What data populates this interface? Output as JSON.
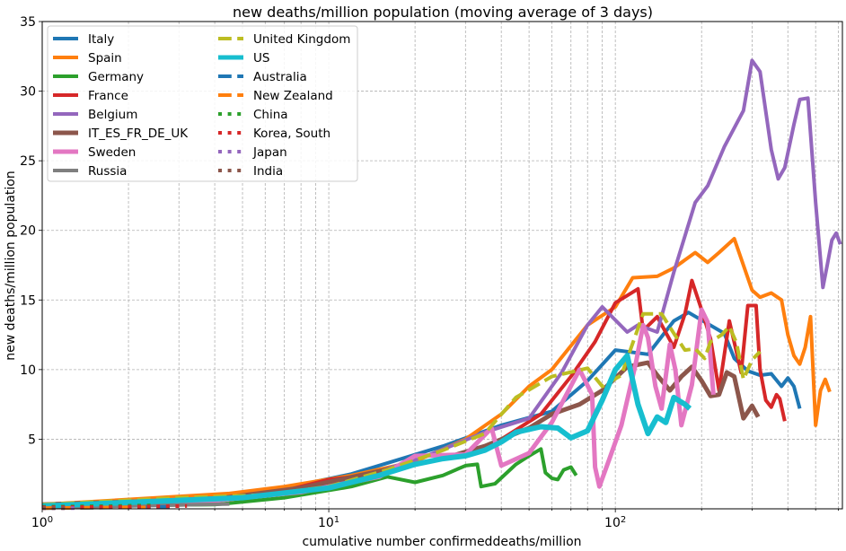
{
  "chart_data": {
    "type": "line",
    "title": "new deaths/million population (moving average of 3 days)",
    "xlabel": "cumulative number confirmeddeaths/million",
    "ylabel": "new deaths/million population",
    "xscale": "log",
    "xlim": [
      1,
      620
    ],
    "ylim": [
      0,
      35
    ],
    "grid": true,
    "legend_position": "upper-left",
    "x_ticks": [
      {
        "value": 1,
        "base": "10",
        "exp": "0"
      },
      {
        "value": 10,
        "base": "10",
        "exp": "1"
      },
      {
        "value": 100,
        "base": "10",
        "exp": "2"
      }
    ],
    "y_ticks": [
      5,
      10,
      15,
      20,
      25,
      30,
      35
    ],
    "series": [
      {
        "name": "Italy",
        "color": "#1f77b4",
        "style": "solid",
        "width": 4,
        "points": [
          [
            1,
            0.3
          ],
          [
            3,
            0.6
          ],
          [
            6,
            1.2
          ],
          [
            12,
            2.5
          ],
          [
            25,
            4.5
          ],
          [
            40,
            6
          ],
          [
            60,
            7
          ],
          [
            80,
            9.2
          ],
          [
            100,
            11.4
          ],
          [
            130,
            11.1
          ],
          [
            160,
            13.5
          ],
          [
            180,
            14.1
          ],
          [
            210,
            13.3
          ],
          [
            240,
            12.6
          ],
          [
            260,
            10.8
          ],
          [
            290,
            9.9
          ],
          [
            320,
            9.6
          ],
          [
            350,
            9.7
          ],
          [
            380,
            8.8
          ],
          [
            400,
            9.4
          ],
          [
            420,
            8.8
          ],
          [
            440,
            7.2
          ]
        ]
      },
      {
        "name": "Spain",
        "color": "#ff7f0e",
        "style": "solid",
        "width": 4,
        "points": [
          [
            1,
            0.3
          ],
          [
            4.5,
            1.1
          ],
          [
            7,
            1.6
          ],
          [
            12,
            2.4
          ],
          [
            20,
            3.4
          ],
          [
            30,
            5
          ],
          [
            40,
            6.8
          ],
          [
            50,
            8.8
          ],
          [
            60,
            10
          ],
          [
            80,
            13.2
          ],
          [
            100,
            14.5
          ],
          [
            115,
            16.6
          ],
          [
            140,
            16.7
          ],
          [
            160,
            17.3
          ],
          [
            190,
            18.4
          ],
          [
            210,
            17.7
          ],
          [
            230,
            18.4
          ],
          [
            260,
            19.4
          ],
          [
            300,
            15.7
          ],
          [
            320,
            15.2
          ],
          [
            350,
            15.5
          ],
          [
            380,
            15
          ],
          [
            400,
            12.5
          ],
          [
            420,
            11
          ],
          [
            440,
            10.4
          ],
          [
            460,
            11.6
          ],
          [
            480,
            13.8
          ],
          [
            500,
            6
          ],
          [
            520,
            8.5
          ],
          [
            540,
            9.3
          ],
          [
            560,
            8.4
          ]
        ]
      },
      {
        "name": "Germany",
        "color": "#2ca02c",
        "style": "solid",
        "width": 4,
        "points": [
          [
            1,
            0.2
          ],
          [
            4,
            0.3
          ],
          [
            7,
            0.8
          ],
          [
            12,
            1.6
          ],
          [
            16,
            2.3
          ],
          [
            20,
            1.9
          ],
          [
            25,
            2.4
          ],
          [
            30,
            3.1
          ],
          [
            33,
            3.2
          ],
          [
            34,
            1.6
          ],
          [
            38,
            1.8
          ],
          [
            45,
            3.2
          ],
          [
            50,
            3.8
          ],
          [
            55,
            4.3
          ],
          [
            57,
            2.6
          ],
          [
            60,
            2.2
          ],
          [
            63,
            2.1
          ],
          [
            66,
            2.8
          ],
          [
            70,
            3
          ],
          [
            73,
            2.4
          ]
        ]
      },
      {
        "name": "France",
        "color": "#d62728",
        "style": "solid",
        "width": 4,
        "points": [
          [
            1,
            0.2
          ],
          [
            4,
            0.6
          ],
          [
            7,
            1.3
          ],
          [
            10,
            2.1
          ],
          [
            15,
            2.5
          ],
          [
            22,
            3.4
          ],
          [
            30,
            3.8
          ],
          [
            40,
            5
          ],
          [
            55,
            6.8
          ],
          [
            70,
            9.5
          ],
          [
            85,
            12
          ],
          [
            100,
            14.8
          ],
          [
            120,
            15.8
          ],
          [
            125,
            12.8
          ],
          [
            140,
            13.8
          ],
          [
            160,
            11.6
          ],
          [
            175,
            14
          ],
          [
            185,
            16.4
          ],
          [
            200,
            14.3
          ],
          [
            215,
            12.2
          ],
          [
            230,
            8.5
          ],
          [
            250,
            13.5
          ],
          [
            275,
            9.8
          ],
          [
            290,
            14.6
          ],
          [
            310,
            14.6
          ],
          [
            320,
            10
          ],
          [
            335,
            7.8
          ],
          [
            350,
            7.3
          ],
          [
            365,
            8.2
          ],
          [
            375,
            7.9
          ],
          [
            390,
            6.3
          ]
        ]
      },
      {
        "name": "Belgium",
        "color": "#9467bd",
        "style": "solid",
        "width": 4,
        "points": [
          [
            1,
            0.3
          ],
          [
            5,
            0.8
          ],
          [
            10,
            1.8
          ],
          [
            15,
            2.7
          ],
          [
            22,
            3.8
          ],
          [
            35,
            5.5
          ],
          [
            50,
            6.5
          ],
          [
            65,
            9.8
          ],
          [
            80,
            13.2
          ],
          [
            90,
            14.5
          ],
          [
            110,
            12.7
          ],
          [
            120,
            13.2
          ],
          [
            140,
            12.7
          ],
          [
            160,
            17
          ],
          [
            190,
            22
          ],
          [
            210,
            23.2
          ],
          [
            240,
            26
          ],
          [
            280,
            28.6
          ],
          [
            300,
            32.2
          ],
          [
            320,
            31.4
          ],
          [
            350,
            25.8
          ],
          [
            370,
            23.7
          ],
          [
            390,
            24.5
          ],
          [
            420,
            27.6
          ],
          [
            440,
            29.4
          ],
          [
            470,
            29.5
          ],
          [
            500,
            22
          ],
          [
            530,
            15.9
          ],
          [
            550,
            17.6
          ],
          [
            570,
            19.3
          ],
          [
            590,
            19.8
          ],
          [
            610,
            19
          ]
        ]
      },
      {
        "name": "IT_ES_FR_DE_UK",
        "color": "#8c564b",
        "style": "solid",
        "width": 5,
        "points": [
          [
            1,
            0.3
          ],
          [
            4,
            0.7
          ],
          [
            8,
            1.5
          ],
          [
            15,
            2.7
          ],
          [
            25,
            3.6
          ],
          [
            35,
            4.5
          ],
          [
            50,
            5.8
          ],
          [
            60,
            6.8
          ],
          [
            75,
            7.5
          ],
          [
            90,
            8.5
          ],
          [
            110,
            10.2
          ],
          [
            130,
            10.5
          ],
          [
            140,
            9.6
          ],
          [
            155,
            8.5
          ],
          [
            170,
            9.5
          ],
          [
            185,
            10.2
          ],
          [
            200,
            9.2
          ],
          [
            215,
            8.1
          ],
          [
            230,
            8.2
          ],
          [
            245,
            9.8
          ],
          [
            260,
            9.5
          ],
          [
            280,
            6.5
          ],
          [
            300,
            7.4
          ],
          [
            315,
            6.6
          ]
        ]
      },
      {
        "name": "Sweden",
        "color": "#e377c2",
        "style": "solid",
        "width": 5,
        "points": [
          [
            1,
            0.2
          ],
          [
            4,
            0.6
          ],
          [
            8,
            1.2
          ],
          [
            15,
            2.3
          ],
          [
            20,
            3.8
          ],
          [
            30,
            3.9
          ],
          [
            37,
            5.8
          ],
          [
            40,
            3.1
          ],
          [
            50,
            4
          ],
          [
            60,
            6.2
          ],
          [
            75,
            10
          ],
          [
            83,
            8.2
          ],
          [
            85,
            3
          ],
          [
            88,
            1.6
          ],
          [
            95,
            3.5
          ],
          [
            105,
            6
          ],
          [
            118,
            10.5
          ],
          [
            125,
            13.2
          ],
          [
            130,
            12.3
          ],
          [
            138,
            8.8
          ],
          [
            145,
            7.2
          ],
          [
            155,
            11.8
          ],
          [
            162,
            10
          ],
          [
            170,
            6
          ],
          [
            185,
            8.9
          ],
          [
            200,
            14.3
          ],
          [
            210,
            13.4
          ],
          [
            220,
            8.2
          ]
        ]
      },
      {
        "name": "Russia",
        "color": "#7f7f7f",
        "style": "solid",
        "width": 4,
        "points": [
          [
            1,
            0.1
          ],
          [
            2,
            0.2
          ],
          [
            3.5,
            0.3
          ],
          [
            4.5,
            0.35
          ]
        ]
      },
      {
        "name": "United Kingdom",
        "color": "#bcbd22",
        "style": "dashed",
        "width": 4,
        "points": [
          [
            1,
            0.3
          ],
          [
            3,
            0.8
          ],
          [
            6,
            1
          ],
          [
            10,
            1.6
          ],
          [
            16,
            2.8
          ],
          [
            25,
            4.2
          ],
          [
            35,
            5.4
          ],
          [
            45,
            8
          ],
          [
            60,
            9.5
          ],
          [
            80,
            10.1
          ],
          [
            90,
            8.8
          ],
          [
            105,
            9.6
          ],
          [
            125,
            14
          ],
          [
            145,
            14
          ],
          [
            160,
            12.6
          ],
          [
            175,
            11.4
          ],
          [
            190,
            11.5
          ],
          [
            205,
            10.8
          ],
          [
            215,
            12
          ],
          [
            235,
            12.5
          ],
          [
            250,
            13.1
          ],
          [
            265,
            11.9
          ],
          [
            280,
            9.3
          ],
          [
            300,
            10.7
          ],
          [
            320,
            11.3
          ]
        ]
      },
      {
        "name": "US",
        "color": "#17becf",
        "style": "solid",
        "width": 6,
        "points": [
          [
            1,
            0.2
          ],
          [
            5,
            0.8
          ],
          [
            10,
            1.5
          ],
          [
            15,
            2.4
          ],
          [
            20,
            3.2
          ],
          [
            25,
            3.6
          ],
          [
            30,
            3.8
          ],
          [
            35,
            4.2
          ],
          [
            40,
            4.8
          ],
          [
            45,
            5.5
          ],
          [
            55,
            5.9
          ],
          [
            63,
            5.8
          ],
          [
            70,
            5.1
          ],
          [
            80,
            5.6
          ],
          [
            90,
            7.8
          ],
          [
            100,
            10
          ],
          [
            110,
            11
          ],
          [
            120,
            7.5
          ],
          [
            130,
            5.4
          ],
          [
            140,
            6.6
          ],
          [
            150,
            6.2
          ],
          [
            160,
            8
          ],
          [
            175,
            7.5
          ],
          [
            182,
            7.2
          ]
        ]
      },
      {
        "name": "Australia",
        "color": "#1f77b4",
        "style": "dashed",
        "width": 4,
        "points": [
          [
            1,
            0.05
          ],
          [
            2,
            0.1
          ],
          [
            2.8,
            0.15
          ]
        ]
      },
      {
        "name": "New Zealand",
        "color": "#ff7f0e",
        "style": "dashed",
        "width": 4,
        "points": [
          [
            1,
            0.05
          ],
          [
            1.8,
            0.1
          ],
          [
            2.3,
            0.1
          ]
        ]
      },
      {
        "name": "China",
        "color": "#2ca02c",
        "style": "dotted",
        "width": 4,
        "points": [
          [
            1,
            0.15
          ],
          [
            1.8,
            0.2
          ],
          [
            2.4,
            0.25
          ]
        ]
      },
      {
        "name": "Korea, South",
        "color": "#d62728",
        "style": "dotted",
        "width": 4,
        "points": [
          [
            1,
            0.1
          ],
          [
            2,
            0.15
          ],
          [
            3.2,
            0.2
          ]
        ]
      },
      {
        "name": "Japan",
        "color": "#9467bd",
        "style": "dotted",
        "width": 4,
        "points": [
          [
            1,
            0.05
          ],
          [
            1.3,
            0.05
          ]
        ]
      },
      {
        "name": "India",
        "color": "#8c564b",
        "style": "dotted",
        "width": 4,
        "points": [
          [
            1,
            0.05
          ],
          [
            1.2,
            0.05
          ]
        ]
      }
    ]
  }
}
